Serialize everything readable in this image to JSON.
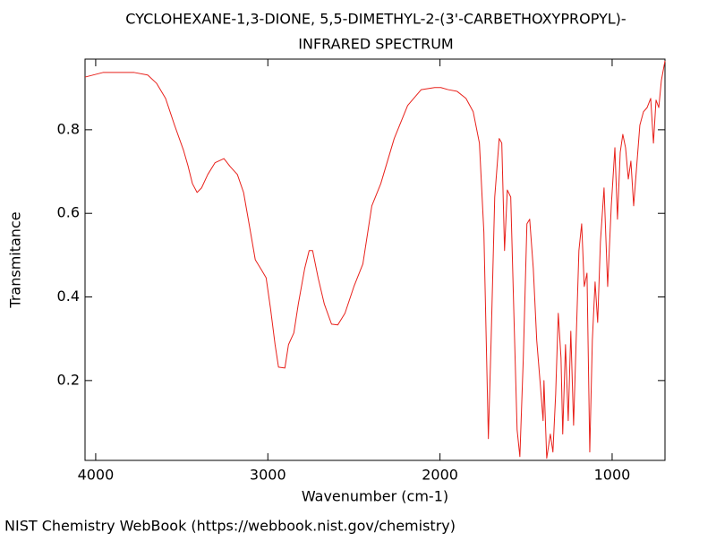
{
  "chart_data": {
    "type": "line",
    "title": [
      "CYCLOHEXANE-1,3-DIONE, 5,5-DIMETHYL-2-(3'-CARBETHOXYPROPYL)-",
      "INFRARED SPECTRUM"
    ],
    "x_label": "Wavenumber (cm-1)",
    "y_label": "Transmitance",
    "footer": "NIST Chemistry WebBook (https://webbook.nist.gov/chemistry)",
    "color": "#e8201a",
    "xlim": [
      4062,
      693
    ],
    "ylim": [
      0.009,
      0.969
    ],
    "xticks": [
      4000,
      3000,
      2000,
      1000
    ],
    "yticks": [
      0.2,
      0.4,
      0.6,
      0.8
    ],
    "x": [
      4062,
      3958,
      3776,
      3698,
      3646,
      3594,
      3542,
      3490,
      3464,
      3438,
      3411,
      3385,
      3349,
      3307,
      3255,
      3219,
      3177,
      3141,
      3109,
      3073,
      3036,
      3010,
      2984,
      2958,
      2938,
      2901,
      2880,
      2849,
      2823,
      2786,
      2760,
      2740,
      2708,
      2672,
      2630,
      2594,
      2552,
      2500,
      2448,
      2396,
      2344,
      2266,
      2188,
      2109,
      2031,
      1995,
      1953,
      1901,
      1849,
      1807,
      1771,
      1745,
      1719,
      1703,
      1682,
      1656,
      1641,
      1625,
      1609,
      1589,
      1568,
      1552,
      1536,
      1516,
      1495,
      1479,
      1458,
      1438,
      1417,
      1401,
      1396,
      1380,
      1359,
      1344,
      1328,
      1313,
      1297,
      1287,
      1271,
      1255,
      1240,
      1224,
      1209,
      1193,
      1177,
      1162,
      1146,
      1130,
      1115,
      1099,
      1084,
      1068,
      1047,
      1026,
      1005,
      984,
      969,
      953,
      938,
      922,
      906,
      891,
      875,
      859,
      839,
      818,
      797,
      776,
      760,
      745,
      729,
      714,
      693
    ],
    "values": [
      0.926,
      0.937,
      0.937,
      0.931,
      0.911,
      0.875,
      0.811,
      0.751,
      0.714,
      0.671,
      0.65,
      0.661,
      0.693,
      0.721,
      0.731,
      0.712,
      0.693,
      0.65,
      0.575,
      0.489,
      0.464,
      0.446,
      0.371,
      0.286,
      0.232,
      0.23,
      0.286,
      0.314,
      0.383,
      0.468,
      0.511,
      0.511,
      0.446,
      0.383,
      0.335,
      0.333,
      0.361,
      0.425,
      0.479,
      0.618,
      0.671,
      0.779,
      0.858,
      0.896,
      0.901,
      0.901,
      0.896,
      0.892,
      0.875,
      0.843,
      0.768,
      0.554,
      0.061,
      0.296,
      0.639,
      0.779,
      0.768,
      0.511,
      0.656,
      0.639,
      0.318,
      0.082,
      0.018,
      0.254,
      0.575,
      0.586,
      0.468,
      0.296,
      0.189,
      0.104,
      0.2,
      0.014,
      0.072,
      0.029,
      0.168,
      0.361,
      0.254,
      0.072,
      0.286,
      0.104,
      0.318,
      0.093,
      0.296,
      0.511,
      0.575,
      0.425,
      0.457,
      0.029,
      0.296,
      0.436,
      0.339,
      0.532,
      0.661,
      0.425,
      0.618,
      0.757,
      0.586,
      0.746,
      0.789,
      0.757,
      0.682,
      0.725,
      0.618,
      0.704,
      0.811,
      0.843,
      0.853,
      0.875,
      0.768,
      0.871,
      0.853,
      0.918,
      0.965
    ]
  }
}
